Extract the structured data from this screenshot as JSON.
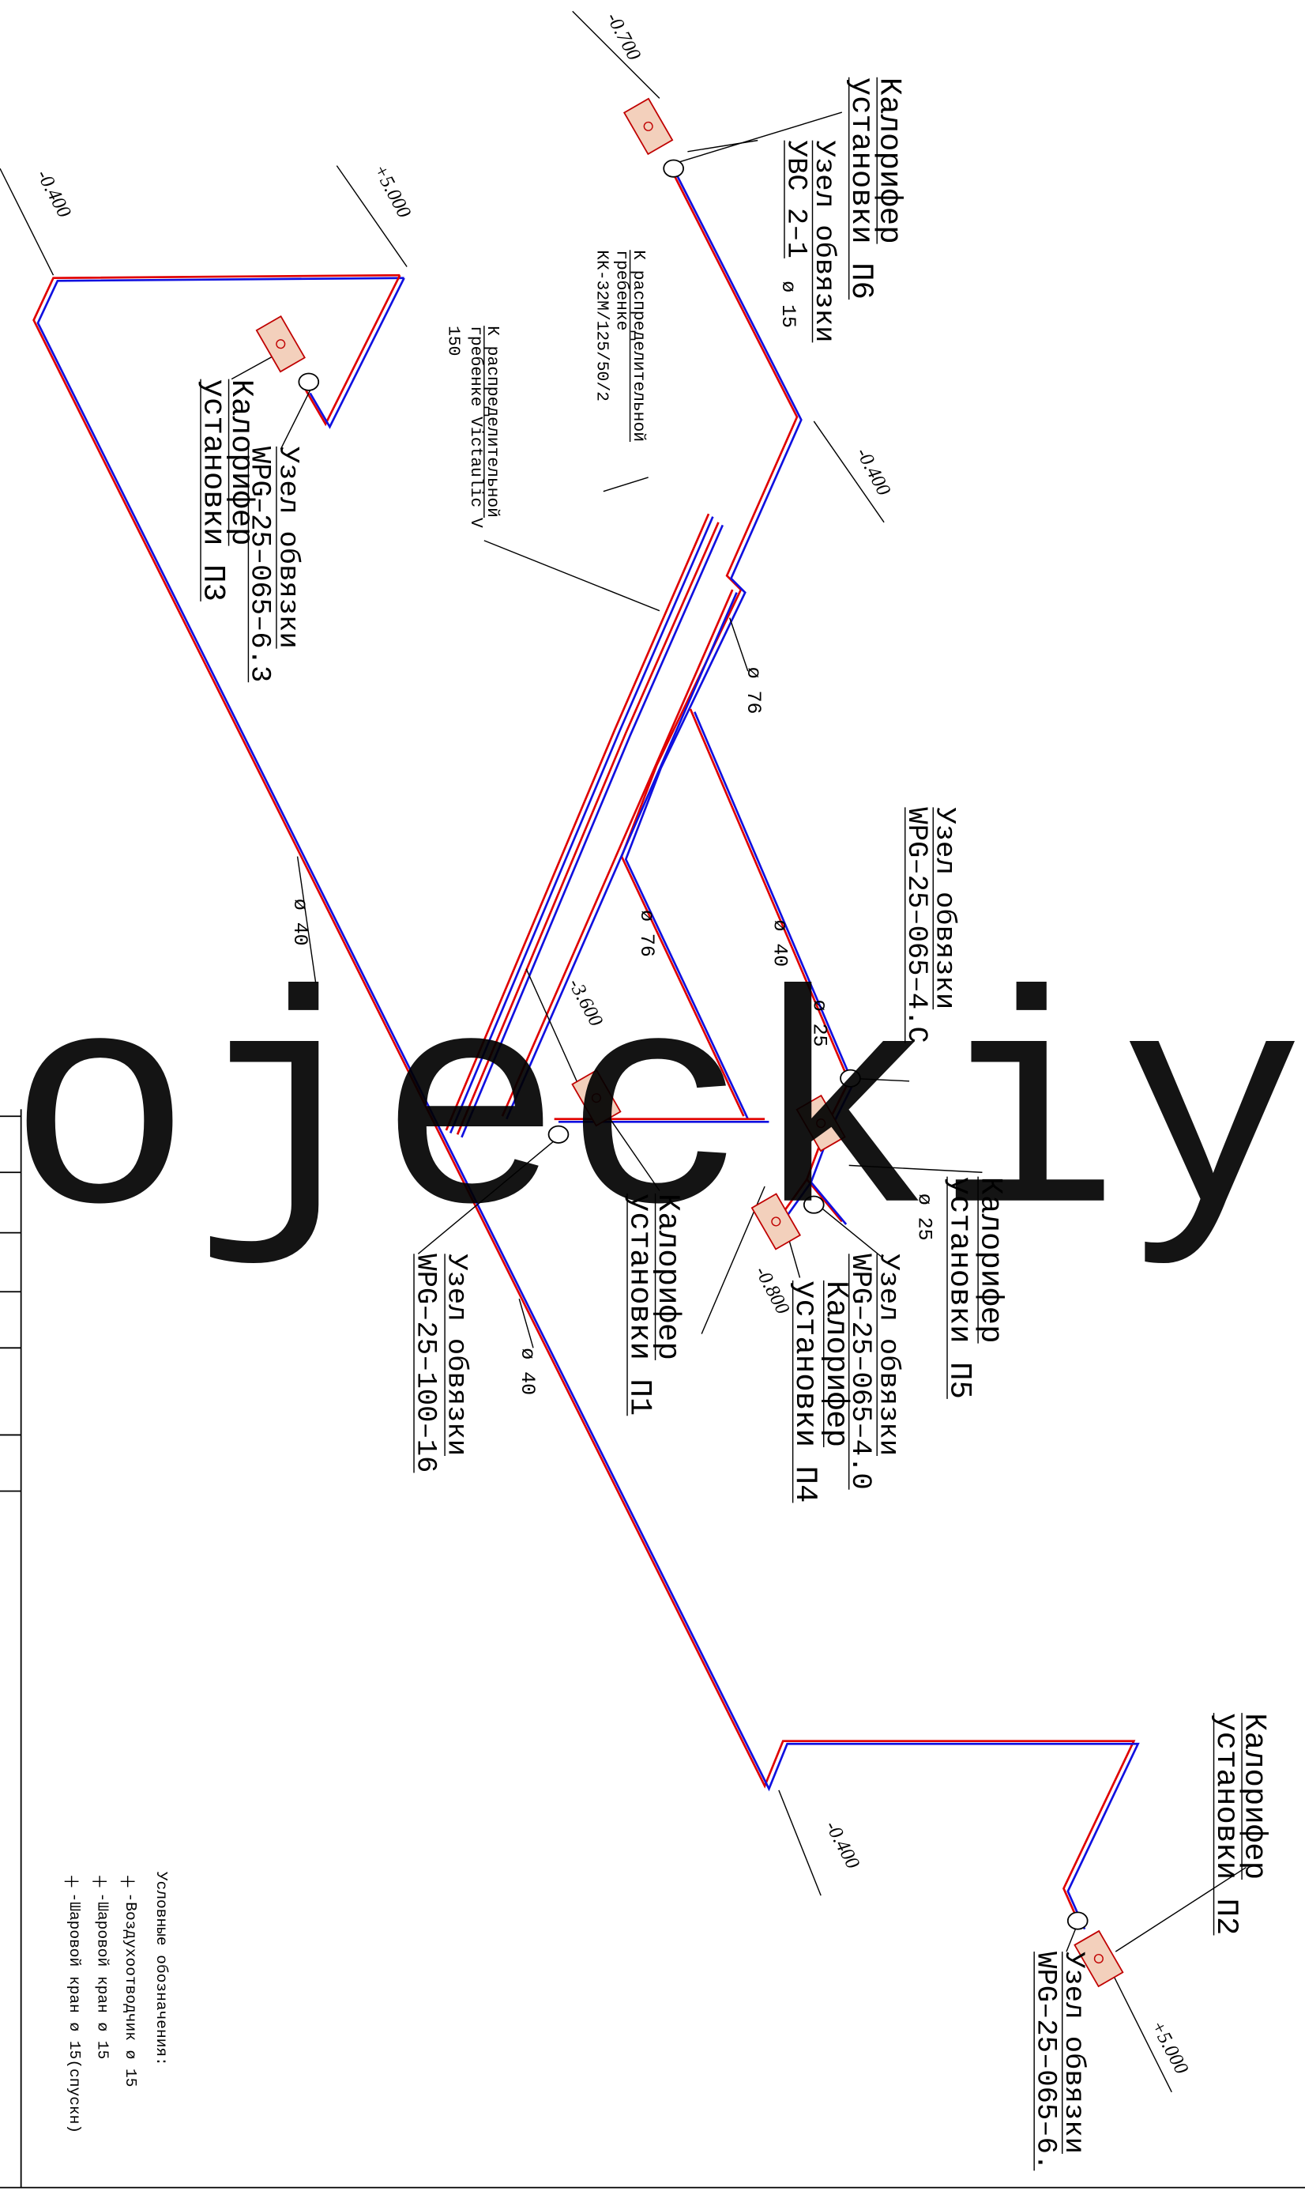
{
  "annotations": [
    "Калорифер",
    "установки П6",
    "Узел обвязки",
    "УВС 2–1",
    "ø 15",
    "-0.700",
    "+5.000",
    "-0.400",
    "-0.400",
    "К распределительной",
    "гребенке",
    "КК-32М/125/50/2",
    "К распределительной",
    "гребенке Victaulic V",
    "150",
    "ø 76",
    "Узел обвязки",
    "WPG–25–065–4.C",
    "ø 40",
    "ø 40",
    "ø 76",
    "-3.600",
    "ø 25",
    "Калорифер",
    "установки П5",
    "ø 25",
    "Узел обвязки",
    "WPG–25–065–4.0",
    "Калорифер",
    "установки П4",
    "-0.800",
    "Калорифер",
    "установки П1",
    "Узел обвязки",
    "WPG–25–100–16",
    "ø 40",
    "Узел обвязки",
    "WPG–25–065–6.3",
    "Калорифер",
    "установки П3",
    "-0.400",
    "Калорифер",
    "установки П2",
    "Узел обвязки",
    "WPG–25–065–6.",
    "+5.000"
  ],
  "legend": {
    "title": "Условные обозначения:",
    "items": [
      "-Воздухоотводчик ø 15",
      "-Шаровой кран ø 15",
      "-Шаровой кран ø 15(спускн)"
    ]
  },
  "watermark": "ojeckiy"
}
